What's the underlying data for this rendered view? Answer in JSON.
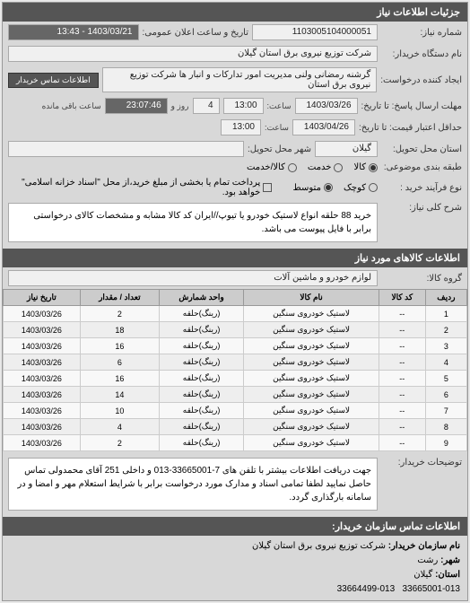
{
  "header": {
    "title": "جزئیات اطلاعات نیاز"
  },
  "form": {
    "req_number_label": "شماره نیاز:",
    "req_number": "1103005104000051",
    "announce_label": "تاریخ و ساعت اعلان عمومی:",
    "announce_value": "1403/03/21 - 13:43",
    "buyer_org_label": "نام دستگاه خریدار:",
    "buyer_org": "شرکت توزیع نیروی برق استان گیلان",
    "requester_label": "ایجاد کننده درخواست:",
    "requester": "گرشنه رمضانی ولنی مدیریت امور تدارکات و انبار ها شرکت توزیع نیروی برق استان",
    "contact_btn": "اطلاعات تماس خریدار",
    "deadline_send_label": "مهلت ارسال پاسخ: تا تاریخ:",
    "deadline_send_date": "1403/03/26",
    "time_label": "ساعت:",
    "deadline_send_time": "13:00",
    "days_label": "روز و",
    "days_value": "4",
    "remain_label": "ساعت باقی مانده",
    "remain_time": "23:07:46",
    "price_deadline_label": "حداقل اعتبار قیمت: تا تاریخ:",
    "price_deadline_date": "1403/04/26",
    "price_deadline_time": "13:00",
    "delivery_place_label": "استان محل تحویل:",
    "delivery_place": "گیلان",
    "delivery_city_label": "شهر محل تحویل:",
    "delivery_city": "",
    "category_label": "طبقه بندی موضوعی:",
    "cat_options": {
      "goods": "کالا",
      "service": "خدمت",
      "both": "کالا/خدمت"
    },
    "cat_selected": "goods",
    "purchase_type_label": "نوع فرآیند خرید :",
    "pt_options": {
      "small": "کوچک",
      "medium": "متوسط"
    },
    "pt_selected": "medium",
    "pay_note": "پرداخت تمام یا بخشی از مبلغ خرید،از محل \"اسناد خزانه اسلامی\" خواهد بود.",
    "general_desc_label": "شرح کلی نیاز:",
    "general_desc": "خرید 88 حلقه انواع لاستیک خودرو یا تیوپ//ایران کد کالا مشابه و مشخصات کالای درخواستی برابر با فایل پیوست می باشد."
  },
  "items_section": {
    "title": "اطلاعات کالاهای مورد نیاز",
    "group_label": "گروه کالا:",
    "group_value": "لوازم خودرو و ماشین آلات",
    "columns": [
      "ردیف",
      "کد کالا",
      "نام کالا",
      "واحد شمارش",
      "تعداد / مقدار",
      "تاریخ نیاز"
    ],
    "rows": [
      [
        "1",
        "--",
        "لاستیک خودروی سنگین",
        "(رینگ)حلقه",
        "2",
        "1403/03/26"
      ],
      [
        "2",
        "--",
        "لاستیک خودروی سنگین",
        "(رینگ)حلقه",
        "18",
        "1403/03/26"
      ],
      [
        "3",
        "--",
        "لاستیک خودروی سنگین",
        "(رینگ)حلقه",
        "16",
        "1403/03/26"
      ],
      [
        "4",
        "--",
        "لاستیک خودروی سنگین",
        "(رینگ)حلقه",
        "6",
        "1403/03/26"
      ],
      [
        "5",
        "--",
        "لاستیک خودروی سنگین",
        "(رینگ)حلقه",
        "16",
        "1403/03/26"
      ],
      [
        "6",
        "--",
        "لاستیک خودروی سنگین",
        "(رینگ)حلقه",
        "14",
        "1403/03/26"
      ],
      [
        "7",
        "--",
        "لاستیک خودروی سنگین",
        "(رینگ)حلقه",
        "10",
        "1403/03/26"
      ],
      [
        "8",
        "--",
        "لاستیک خودروی سنگین",
        "(رینگ)حلقه",
        "4",
        "1403/03/26"
      ],
      [
        "9",
        "--",
        "لاستیک خودروی سنگین",
        "(رینگ)حلقه",
        "2",
        "1403/03/26"
      ]
    ],
    "notes_label": "توضیحات خریدار:",
    "notes": "جهت دریافت اطلاعات بیشتر با تلفن های 7-33665001-013 و داخلی 251 آقای محمدولی تماس حاصل نمایید لطفا تمامی اسناد و مدارک مورد درخواست برابر با شرایط استعلام مهر و امضا و در سامانه بارگذاری گردد."
  },
  "contact_section": {
    "title": "اطلاعات تماس سازمان خریدار:",
    "org_label": "نام سازمان خریدار:",
    "org": "شرکت توزیع نیروی برق استان گیلان",
    "city_label": "شهر:",
    "city": "رشت",
    "province_label": "استان:",
    "province": "گیلان",
    "phone1": "33665001-013",
    "phone2": "33664499-013"
  }
}
